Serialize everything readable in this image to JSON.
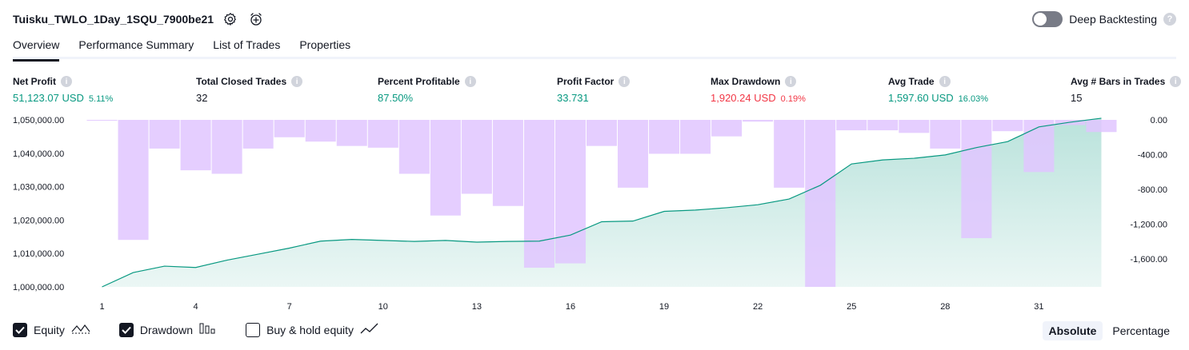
{
  "header": {
    "title": "Tuisku_TWLO_1Day_1SQU_7900be21",
    "deep_backtesting_label": "Deep Backtesting"
  },
  "icons": {
    "settings": "gear-icon",
    "alert": "add-alert-icon",
    "help": "help-icon"
  },
  "tabs": [
    {
      "label": "Overview",
      "active": true
    },
    {
      "label": "Performance Summary",
      "active": false
    },
    {
      "label": "List of Trades",
      "active": false
    },
    {
      "label": "Properties",
      "active": false
    }
  ],
  "metrics": {
    "net_profit": {
      "label": "Net Profit",
      "value": "51,123.07 USD",
      "pct": "5.11%"
    },
    "total_closed_trades": {
      "label": "Total Closed Trades",
      "value": "32"
    },
    "percent_profitable": {
      "label": "Percent Profitable",
      "value": "87.50%"
    },
    "profit_factor": {
      "label": "Profit Factor",
      "value": "33.731"
    },
    "max_drawdown": {
      "label": "Max Drawdown",
      "value": "1,920.24 USD",
      "pct": "0.19%"
    },
    "avg_trade": {
      "label": "Avg Trade",
      "value": "1,597.60 USD",
      "pct": "16.03%"
    },
    "avg_bars": {
      "label": "Avg # Bars in Trades",
      "value": "15"
    }
  },
  "chart_data": {
    "type": "area",
    "y_left_ticks": [
      "1,050,000.00",
      "1,040,000.00",
      "1,030,000.00",
      "1,020,000.00",
      "1,010,000.00",
      "1,000,000.00"
    ],
    "y_left_range": [
      1000000,
      1050000
    ],
    "y_right_ticks": [
      "0.00",
      "-400.00",
      "-800.00",
      "-1,200.00",
      "-1,600.00"
    ],
    "y_right_range": [
      -1920.24,
      0
    ],
    "x_ticks": [
      "1",
      "4",
      "7",
      "10",
      "13",
      "16",
      "19",
      "22",
      "25",
      "28",
      "31"
    ],
    "x_range": [
      1,
      33
    ],
    "series": [
      {
        "name": "Equity",
        "color": "#089981",
        "x": [
          1,
          2,
          3,
          4,
          5,
          6,
          7,
          8,
          9,
          10,
          11,
          12,
          13,
          14,
          15,
          16,
          17,
          18,
          19,
          20,
          21,
          22,
          23,
          24,
          25,
          26,
          27,
          28,
          29,
          30,
          31,
          32,
          33
        ],
        "values": [
          1000000,
          1004300,
          1006200,
          1005800,
          1008000,
          1009800,
          1011600,
          1013700,
          1014200,
          1013900,
          1013600,
          1013900,
          1013400,
          1013600,
          1013700,
          1015500,
          1019500,
          1019700,
          1022600,
          1023000,
          1023700,
          1024600,
          1026300,
          1030400,
          1036800,
          1038000,
          1038500,
          1039500,
          1041700,
          1043500,
          1047900,
          1049300,
          1050500
        ]
      },
      {
        "name": "Drawdown",
        "color": "#e1c5ff",
        "values": [
          -10,
          -1380,
          -330,
          -580,
          -620,
          -330,
          -200,
          -250,
          -300,
          -320,
          -620,
          -1100,
          -850,
          -990,
          -1700,
          -1650,
          -300,
          -780,
          -390,
          -390,
          -190,
          -20,
          -780,
          -1920.24,
          -120,
          -120,
          -150,
          -330,
          -1360,
          -130,
          -600,
          -60,
          -140
        ]
      }
    ],
    "legend": [
      {
        "label": "Equity",
        "checked": true,
        "icon": "equity-line-icon"
      },
      {
        "label": "Drawdown",
        "checked": true,
        "icon": "drawdown-bars-icon"
      },
      {
        "label": "Buy & hold equity",
        "checked": false,
        "icon": "buy-hold-line-icon"
      }
    ]
  },
  "modes": [
    {
      "label": "Absolute",
      "active": true
    },
    {
      "label": "Percentage",
      "active": false
    }
  ],
  "colors": {
    "green": "#089981",
    "red": "#f23645",
    "drawdown": "#e1c5ff",
    "overlap": "#b2b5e4"
  }
}
